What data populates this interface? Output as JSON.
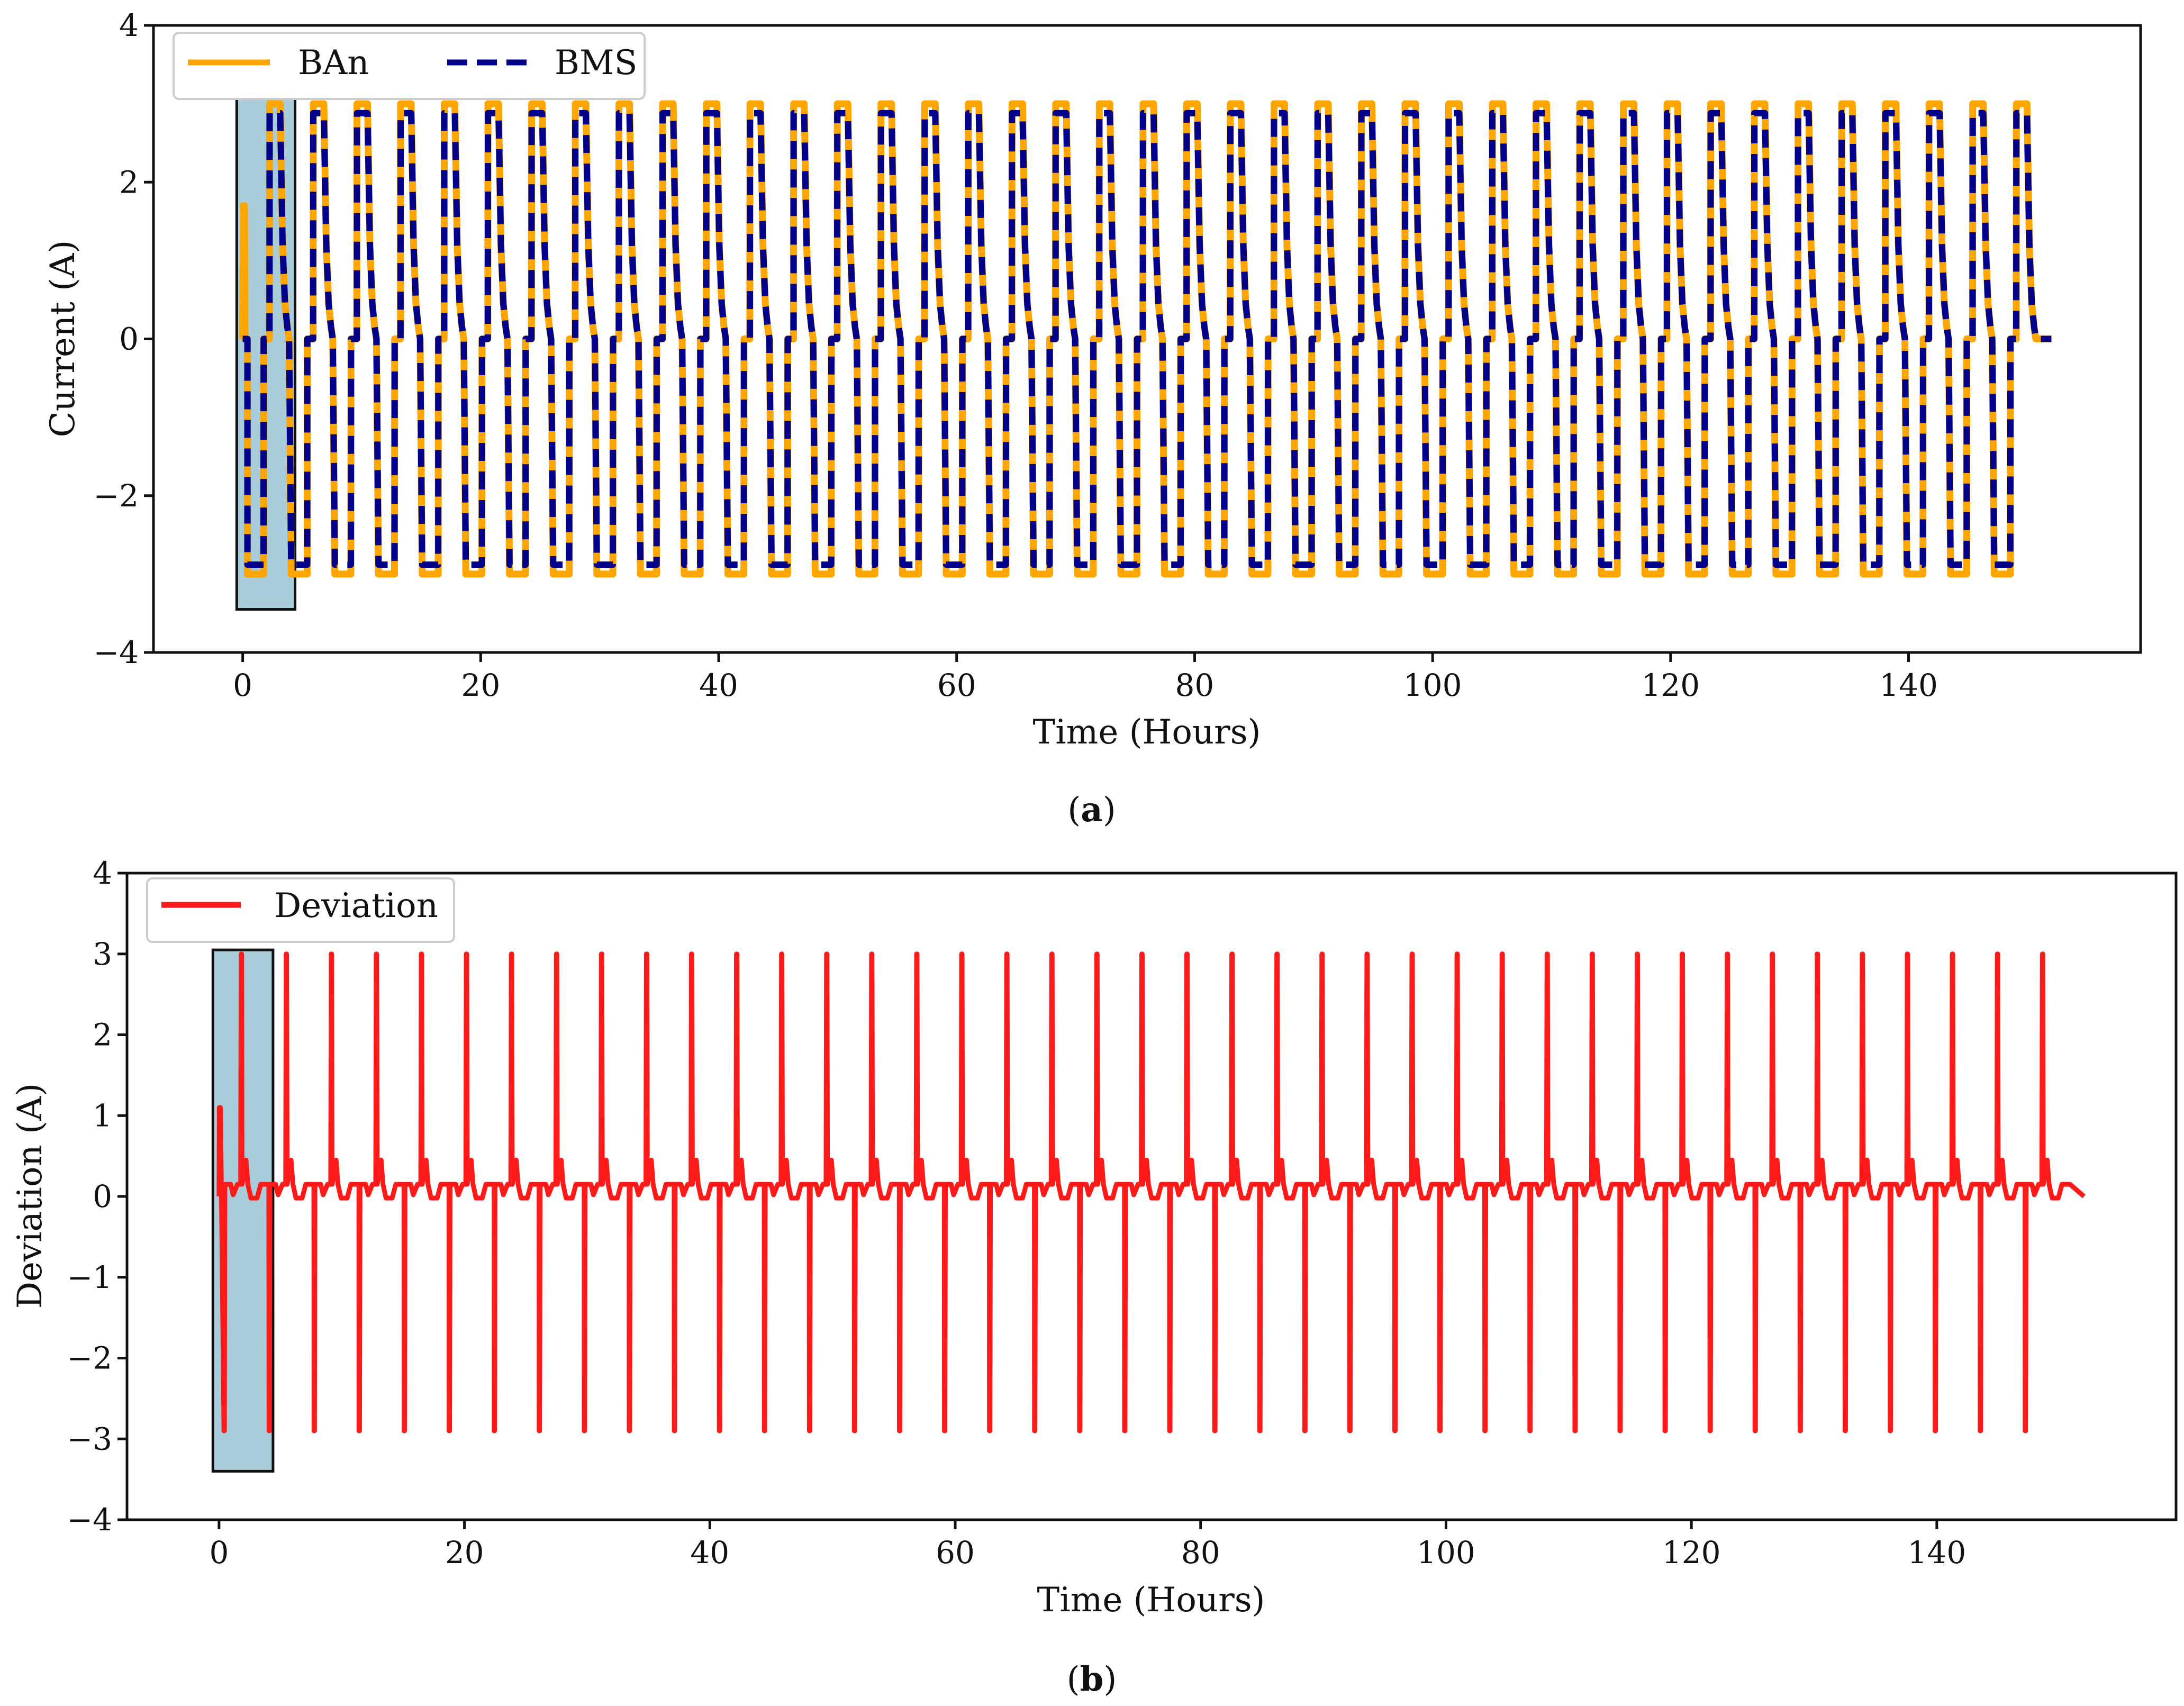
{
  "chart_data": [
    {
      "type": "line",
      "panel_label": "a",
      "xlabel": "Time (Hours)",
      "ylabel": "Current (A)",
      "xlim": [
        -7.5,
        159.5
      ],
      "ylim": [
        -4,
        4
      ],
      "x_ticks": [
        0,
        20,
        40,
        60,
        80,
        100,
        120,
        140
      ],
      "y_ticks": [
        -4,
        -2,
        0,
        2,
        4
      ],
      "x_tick_labels": [
        "0",
        "20",
        "40",
        "60",
        "80",
        "100",
        "120",
        "140"
      ],
      "y_tick_labels": [
        "−4",
        "−2",
        "0",
        "2",
        "4"
      ],
      "legend": {
        "placement": "top-left",
        "entries": [
          "BAn",
          "BMS"
        ]
      },
      "highlight_box": {
        "x_range": [
          -0.5,
          4.4
        ],
        "y_range": [
          -3.45,
          3.18
        ]
      },
      "cycle": {
        "start": 0.4,
        "period": 3.67,
        "count": 41,
        "end": 152.0
      },
      "series": [
        {
          "name": "BAn",
          "style": "solid",
          "color": "#FFA500",
          "charge_level": 3.0,
          "discharge_level": -3.0,
          "rest_level": 0.0,
          "initial_spike": 1.7
        },
        {
          "name": "BMS",
          "style": "dashed",
          "color": "#00008B",
          "charge_level": 2.88,
          "discharge_level": -2.88,
          "rest_level": 0.0
        }
      ]
    },
    {
      "type": "line",
      "panel_label": "b",
      "xlabel": "Time (Hours)",
      "ylabel": "Deviation (A)",
      "xlim": [
        -7.5,
        159.5
      ],
      "ylim": [
        -4,
        4
      ],
      "x_ticks": [
        0,
        20,
        40,
        60,
        80,
        100,
        120,
        140
      ],
      "y_ticks": [
        -4,
        -3,
        -2,
        -1,
        0,
        1,
        2,
        3,
        4
      ],
      "x_tick_labels": [
        "0",
        "20",
        "40",
        "60",
        "80",
        "100",
        "120",
        "140"
      ],
      "y_tick_labels": [
        "−4",
        "−3",
        "−2",
        "−1",
        "0",
        "1",
        "2",
        "3",
        "4"
      ],
      "legend": {
        "placement": "top-left",
        "entries": [
          "Deviation"
        ]
      },
      "highlight_box": {
        "x_range": [
          -0.5,
          4.4
        ],
        "y_range": [
          -3.4,
          3.05
        ]
      },
      "cycle": {
        "start": 0.4,
        "period": 3.67,
        "count": 41,
        "end": 152.0
      },
      "series": [
        {
          "name": "Deviation",
          "style": "solid",
          "color": "#FF1A1A",
          "spike_high": 3.0,
          "spike_low": -2.9,
          "ripple_peak": 0.45,
          "ripple_base": 0.15,
          "initial_spike": 1.1
        }
      ]
    }
  ]
}
